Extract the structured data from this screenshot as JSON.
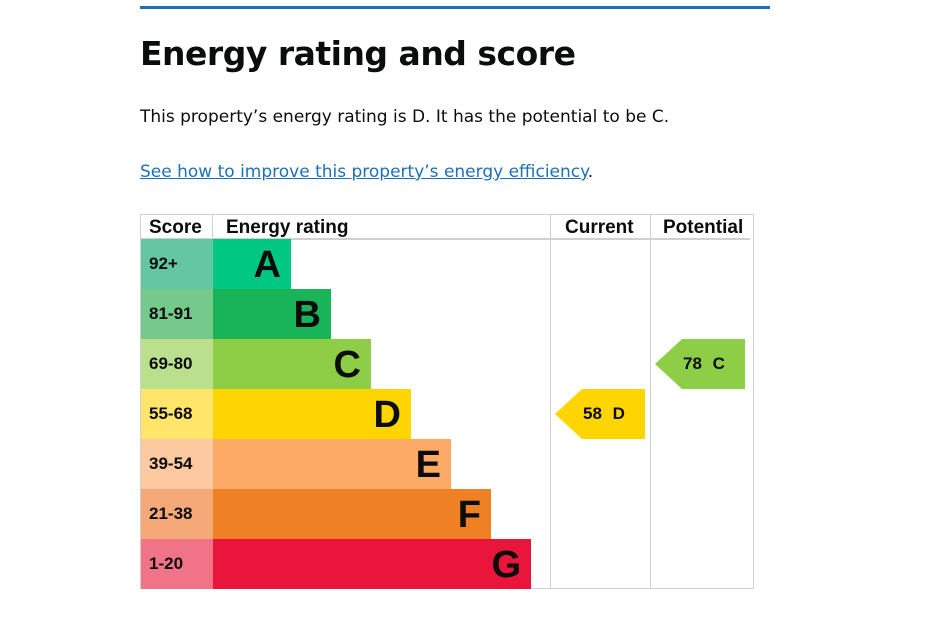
{
  "title": "Energy rating and score",
  "summary": "This property’s energy rating is D. It has the potential to be C.",
  "link_text": "See how to improve this property’s energy efficiency",
  "link_suffix": ".",
  "table": {
    "headers": {
      "score": "Score",
      "rating": "Energy rating",
      "current": "Current",
      "potential": "Potential"
    },
    "bands": [
      {
        "score": "92+",
        "letter": "A",
        "color": "#00c781",
        "light": "#64c7a1"
      },
      {
        "score": "81-91",
        "letter": "B",
        "color": "#19b459",
        "light": "#74c98b"
      },
      {
        "score": "69-80",
        "letter": "C",
        "color": "#8dce46",
        "light": "#bbe08d"
      },
      {
        "score": "55-68",
        "letter": "D",
        "color": "#ffd500",
        "light": "#ffe56a"
      },
      {
        "score": "39-54",
        "letter": "E",
        "color": "#fcaa65",
        "light": "#fdc9a0"
      },
      {
        "score": "21-38",
        "letter": "F",
        "color": "#ef8023",
        "light": "#f5a978"
      },
      {
        "score": "1-20",
        "letter": "G",
        "color": "#e9153b",
        "light": "#f17387"
      }
    ],
    "current": {
      "value": "58",
      "letter": "D",
      "color": "#ffd500"
    },
    "potential": {
      "value": "78",
      "letter": "C",
      "color": "#8dce46"
    }
  }
}
